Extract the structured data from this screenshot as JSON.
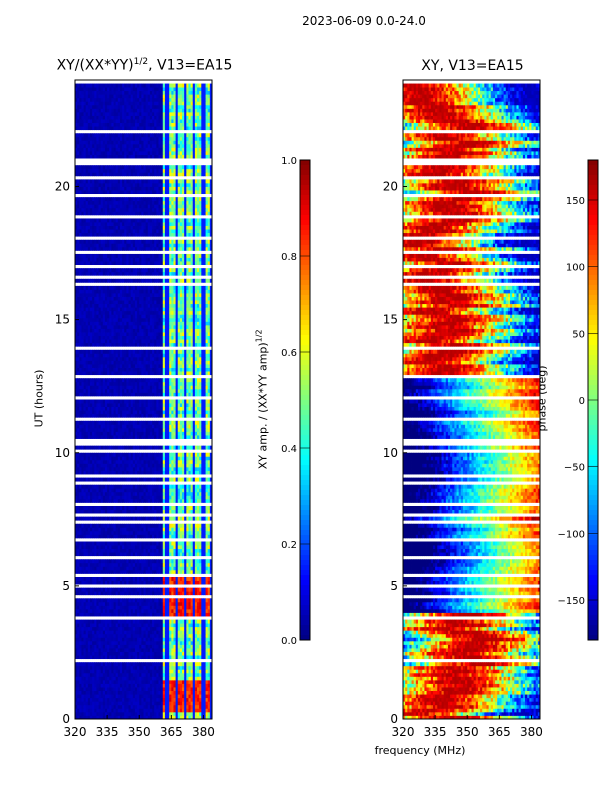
{
  "suptitle": "2023-06-09 0.0-24.0",
  "chart_data": [
    {
      "type": "heatmap",
      "title_main": "XY/(XX*YY)",
      "title_exp": "1/2",
      "title_suffix": ", V13=EA15",
      "xlabel": "",
      "ylabel": "UT (hours)",
      "xlim": [
        320,
        384
      ],
      "ylim": [
        0,
        24
      ],
      "xticks": [
        320,
        335,
        350,
        365,
        380
      ],
      "yticks": [
        0,
        5,
        10,
        15,
        20
      ],
      "colorbar": {
        "label_main": "XY amp. / (XX*YY amp)",
        "label_exp": "1/2",
        "range": [
          0.0,
          1.0
        ],
        "ticks": [
          "0.0",
          "0.2",
          "0.4",
          "0.6",
          "0.8",
          "1.0"
        ],
        "colormap": "jet"
      },
      "data_description_values": {
        "background_level": 0.05,
        "active_band_MHz": [
          361,
          384
        ],
        "active_level": 0.4,
        "high_periods_hours": [
          [
            0.3,
            1.5
          ],
          [
            3.8,
            5.5
          ]
        ],
        "high_level": 0.85
      }
    },
    {
      "type": "heatmap",
      "title": "XY, V13=EA15",
      "xlabel": "frequency (MHz)",
      "ylabel": "",
      "xlim": [
        320,
        384
      ],
      "ylim": [
        0,
        24
      ],
      "xticks": [
        320,
        335,
        350,
        365,
        380
      ],
      "yticks": [
        0,
        5,
        10,
        15,
        20
      ],
      "colorbar": {
        "label": "phase (deg)",
        "range": [
          -180,
          180
        ],
        "ticks": [
          "150",
          "100",
          "50",
          "0",
          "−50",
          "−100",
          "−150"
        ],
        "colormap": "jet"
      }
    }
  ]
}
